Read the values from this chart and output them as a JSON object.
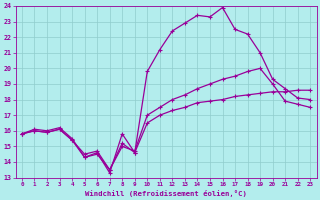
{
  "xlabel": "Windchill (Refroidissement éolien,°C)",
  "background_color": "#b3eded",
  "grid_color": "#90cccc",
  "line_color": "#990099",
  "xlim_min": -0.5,
  "xlim_max": 23.5,
  "ylim_min": 13,
  "ylim_max": 24,
  "xticks": [
    0,
    1,
    2,
    3,
    4,
    5,
    6,
    7,
    8,
    9,
    10,
    11,
    12,
    13,
    14,
    15,
    16,
    17,
    18,
    19,
    20,
    21,
    22,
    23
  ],
  "yticks": [
    13,
    14,
    15,
    16,
    17,
    18,
    19,
    20,
    21,
    22,
    23,
    24
  ],
  "line1_x": [
    0,
    1,
    2,
    3,
    4,
    5,
    6,
    7,
    8,
    9,
    10,
    11,
    12,
    13,
    14,
    15,
    16,
    17,
    18,
    19,
    20,
    21,
    22,
    23
  ],
  "line1_y": [
    15.8,
    16.1,
    16.0,
    16.2,
    15.5,
    14.3,
    14.6,
    13.3,
    15.8,
    14.6,
    19.8,
    21.2,
    22.4,
    22.9,
    23.4,
    23.3,
    23.9,
    22.5,
    22.2,
    21.0,
    19.3,
    18.7,
    18.1,
    18.0
  ],
  "line2_x": [
    0,
    1,
    2,
    3,
    4,
    5,
    6,
    7,
    8,
    9,
    10,
    11,
    12,
    13,
    14,
    15,
    16,
    17,
    18,
    19,
    20,
    21,
    22,
    23
  ],
  "line2_y": [
    15.8,
    16.0,
    15.9,
    16.1,
    15.4,
    14.5,
    14.7,
    13.5,
    15.0,
    14.7,
    17.0,
    17.5,
    18.0,
    18.3,
    18.7,
    19.0,
    19.3,
    19.5,
    19.8,
    20.0,
    19.0,
    17.9,
    17.7,
    17.5
  ],
  "line3_x": [
    0,
    1,
    2,
    3,
    4,
    5,
    6,
    7,
    8,
    9,
    10,
    11,
    12,
    13,
    14,
    15,
    16,
    17,
    18,
    19,
    20,
    21,
    22,
    23
  ],
  "line3_y": [
    15.8,
    16.0,
    15.9,
    16.1,
    15.4,
    14.3,
    14.5,
    13.5,
    15.2,
    14.6,
    16.5,
    17.0,
    17.3,
    17.5,
    17.8,
    17.9,
    18.0,
    18.2,
    18.3,
    18.4,
    18.5,
    18.5,
    18.6,
    18.6
  ]
}
